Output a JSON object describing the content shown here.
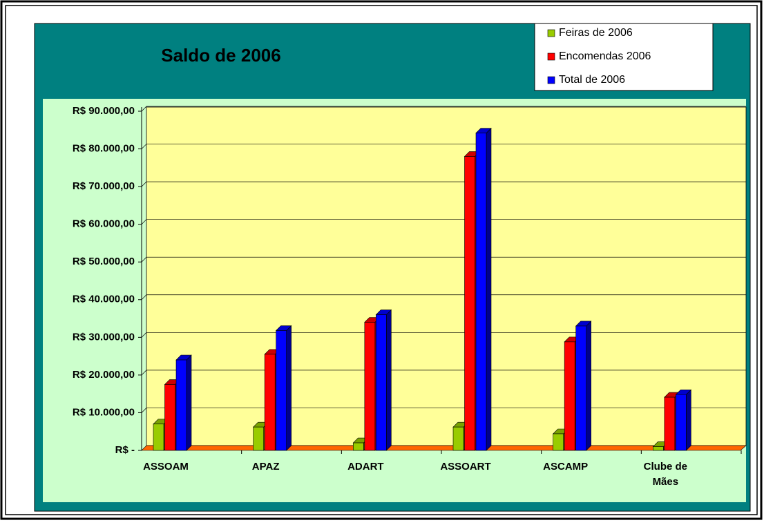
{
  "chart_data": {
    "type": "bar",
    "title": "Saldo de 2006",
    "categories": [
      "ASSOAM",
      "APAZ",
      "ADART",
      "ASSOART",
      "ASCAMP",
      "Clube de Mães"
    ],
    "series": [
      {
        "name": "Feiras de 2006",
        "color": "#99cc00",
        "values": [
          7000,
          6200,
          2000,
          6200,
          4400,
          1000
        ]
      },
      {
        "name": "Encomendas 2006",
        "color": "#ff0000",
        "values": [
          17500,
          25500,
          34000,
          78000,
          28800,
          14100
        ]
      },
      {
        "name": "Total de 2006",
        "color": "#0000ff",
        "values": [
          24000,
          31800,
          36000,
          84200,
          33000,
          14800
        ]
      }
    ],
    "ylim": [
      0,
      90000
    ],
    "yticks": [
      {
        "value": 0,
        "label": "R$ -"
      },
      {
        "value": 10000,
        "label": "R$ 10.000,00"
      },
      {
        "value": 20000,
        "label": "R$ 20.000,00"
      },
      {
        "value": 30000,
        "label": "R$ 30.000,00"
      },
      {
        "value": 40000,
        "label": "R$ 40.000,00"
      },
      {
        "value": 50000,
        "label": "R$ 50.000,00"
      },
      {
        "value": 60000,
        "label": "R$ 60.000,00"
      },
      {
        "value": 70000,
        "label": "R$ 70.000,00"
      },
      {
        "value": 80000,
        "label": "R$ 80.000,00"
      },
      {
        "value": 90000,
        "label": "R$ 90.000,00"
      }
    ],
    "grid": true
  }
}
